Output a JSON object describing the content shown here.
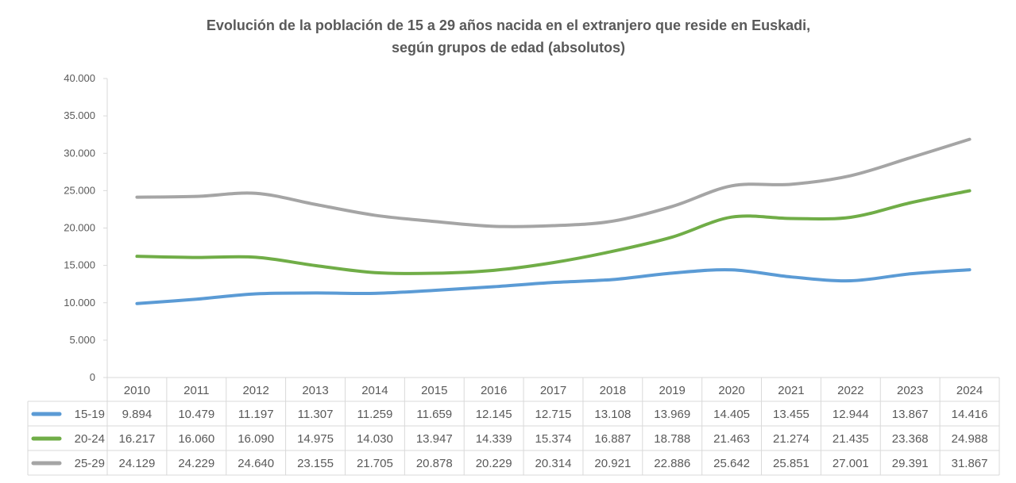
{
  "chart_data": {
    "type": "line",
    "title": [
      "Evolución de la población de 15 a 29 años nacida en el extranjero que reside en Euskadi,",
      "según grupos de edad (absolutos)"
    ],
    "categories": [
      "2010",
      "2011",
      "2012",
      "2013",
      "2014",
      "2015",
      "2016",
      "2017",
      "2018",
      "2019",
      "2020",
      "2021",
      "2022",
      "2023",
      "2024"
    ],
    "ylim": [
      0,
      40000
    ],
    "yticks": [
      0,
      5000,
      10000,
      15000,
      20000,
      25000,
      30000,
      35000,
      40000
    ],
    "ytick_labels": [
      "0",
      "5.000",
      "10.000",
      "15.000",
      "20.000",
      "25.000",
      "30.000",
      "35.000",
      "40.000"
    ],
    "grid": false,
    "legend": "data-table-below",
    "series": [
      {
        "name": "15-19",
        "color": "#5B9BD5",
        "values": [
          9894,
          10479,
          11197,
          11307,
          11259,
          11659,
          12145,
          12715,
          13108,
          13969,
          14405,
          13455,
          12944,
          13867,
          14416
        ],
        "labels": [
          "9.894",
          "10.479",
          "11.197",
          "11.307",
          "11.259",
          "11.659",
          "12.145",
          "12.715",
          "13.108",
          "13.969",
          "14.405",
          "13.455",
          "12.944",
          "13.867",
          "14.416"
        ]
      },
      {
        "name": "20-24",
        "color": "#70AD47",
        "values": [
          16217,
          16060,
          16090,
          14975,
          14030,
          13947,
          14339,
          15374,
          16887,
          18788,
          21463,
          21274,
          21435,
          23368,
          24988
        ],
        "labels": [
          "16.217",
          "16.060",
          "16.090",
          "14.975",
          "14.030",
          "13.947",
          "14.339",
          "15.374",
          "16.887",
          "18.788",
          "21.463",
          "21.274",
          "21.435",
          "23.368",
          "24.988"
        ]
      },
      {
        "name": "25-29",
        "color": "#A5A5A5",
        "values": [
          24129,
          24229,
          24640,
          23155,
          21705,
          20878,
          20229,
          20314,
          20921,
          22886,
          25642,
          25851,
          27001,
          29391,
          31867
        ],
        "labels": [
          "24.129",
          "24.229",
          "24.640",
          "23.155",
          "21.705",
          "20.878",
          "20.229",
          "20.314",
          "20.921",
          "22.886",
          "25.642",
          "25.851",
          "27.001",
          "29.391",
          "31.867"
        ]
      }
    ]
  }
}
